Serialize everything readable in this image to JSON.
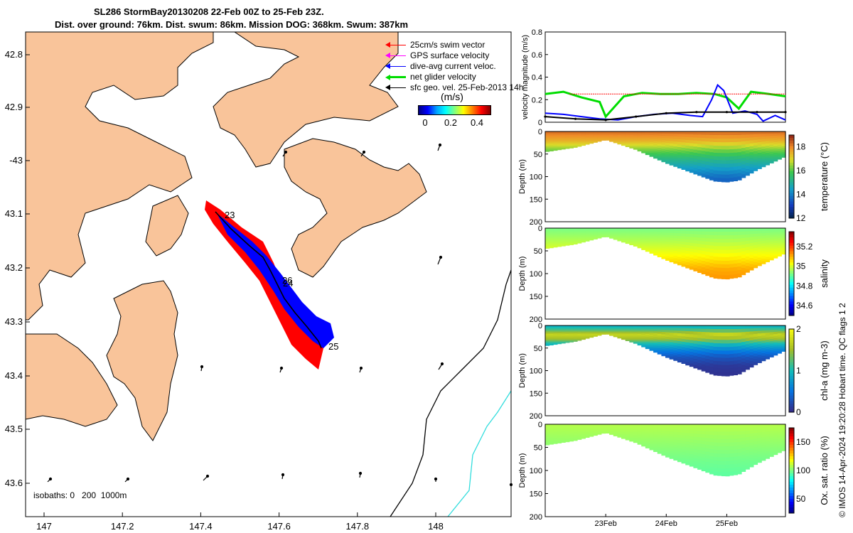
{
  "title_line1": "SL286 StormBay20130208 22-Feb 00Z to 25-Feb 23Z.",
  "title_line2": "Dist. over ground: 76km. Dist. swum: 86km. Mission DOG: 368km. Swum: 387km",
  "colors": {
    "land": "#F9C49A",
    "swim_vector": "#FF0000",
    "gps_velocity": "#FF00FF",
    "dive_avg": "#0000FF",
    "net_glider": "#00DD00",
    "sfc_geo": "#000000",
    "isobath_200": "#000000",
    "isobath_1000": "#33DDDD"
  },
  "map": {
    "lon_ticks": [
      "147",
      "147.2",
      "147.4",
      "147.6",
      "147.8",
      "148"
    ],
    "lat_ticks": [
      "42.8",
      "42.9",
      "-43",
      "43.1",
      "43.2",
      "43.3",
      "43.4",
      "43.5",
      "43.6"
    ],
    "legend": [
      {
        "label": "25cm/s swim vector",
        "icon": "red-arrow"
      },
      {
        "label": "GPS surface velocity",
        "icon": "magenta-arrow"
      },
      {
        "label": "dive-avg current veloc.",
        "icon": "blue-arrow"
      },
      {
        "label": "net glider velocity",
        "icon": "green-arrow"
      },
      {
        "label": "sfc geo. vel. 25-Feb-2013 14h",
        "icon": "black-arrow"
      }
    ],
    "colorbar_unit": "(m/s)",
    "colorbar_ticks": [
      "0",
      "0.2",
      "0.4"
    ],
    "day_labels": [
      "23",
      "26",
      "24",
      "25"
    ],
    "isobath_text": "isobaths: 0   200  1000m"
  },
  "chart_data": [
    {
      "type": "line",
      "ylabel": "velocity magnitude (m/s)",
      "ylim": [
        0,
        0.8
      ],
      "yticks": [
        "0",
        "0.2",
        "0.4",
        "0.6",
        "0.8"
      ],
      "xlim": [
        22.0,
        25.97
      ],
      "series": [
        {
          "color": "#00DD00",
          "x": [
            22.0,
            22.3,
            22.6,
            22.9,
            23.0,
            23.3,
            23.6,
            23.9,
            24.2,
            24.5,
            24.8,
            25.0,
            25.2,
            25.4,
            25.7,
            25.97
          ],
          "values": [
            0.25,
            0.27,
            0.22,
            0.18,
            0.05,
            0.23,
            0.26,
            0.25,
            0.25,
            0.26,
            0.25,
            0.22,
            0.12,
            0.27,
            0.25,
            0.23
          ]
        },
        {
          "color": "#0000FF",
          "x": [
            22.0,
            22.3,
            22.6,
            22.9,
            23.2,
            23.5,
            23.8,
            24.1,
            24.4,
            24.6,
            24.75,
            24.85,
            24.95,
            25.1,
            25.3,
            25.5,
            25.6,
            25.8,
            25.97
          ],
          "values": [
            0.08,
            0.07,
            0.05,
            0.03,
            0.02,
            0.05,
            0.07,
            0.08,
            0.06,
            0.05,
            0.2,
            0.33,
            0.28,
            0.08,
            0.1,
            0.07,
            0.01,
            0.06,
            0.02
          ]
        },
        {
          "color": "#000000",
          "x": [
            22.0,
            22.5,
            23.0,
            23.5,
            24.0,
            24.5,
            25.0,
            25.5,
            25.97
          ],
          "values": [
            0.05,
            0.03,
            0.02,
            0.05,
            0.08,
            0.09,
            0.09,
            0.09,
            0.09
          ]
        },
        {
          "color": "#FF0000",
          "x": [
            22.4,
            23.6,
            24.5,
            25.2,
            25.97
          ],
          "values": [
            0.25,
            0.25,
            0.25,
            0.25,
            0.25
          ]
        }
      ]
    },
    {
      "type": "heatmap",
      "ylabel": "Depth (m)",
      "clabel": "temperature (°C)",
      "ylim": [
        0,
        200
      ],
      "yticks": [
        "0",
        "50",
        "100",
        "150",
        "200"
      ],
      "clim": [
        12,
        19
      ],
      "cticks": [
        "12",
        "14",
        "16",
        "18"
      ],
      "xlim": [
        22.0,
        25.97
      ],
      "bottom_depth": {
        "x": [
          22.0,
          22.5,
          23.0,
          23.5,
          24.0,
          24.5,
          24.8,
          25.0,
          25.2,
          25.5,
          25.97
        ],
        "depth": [
          45,
          35,
          18,
          40,
          70,
          95,
          110,
          112,
          108,
          85,
          55
        ]
      },
      "profile": {
        "depth": [
          0,
          20,
          40,
          60,
          80,
          100,
          112
        ],
        "value": [
          18.3,
          17.5,
          16.3,
          15.3,
          14.5,
          13.8,
          13.5
        ]
      }
    },
    {
      "type": "heatmap",
      "ylabel": "Depth (m)",
      "clabel": "salinity",
      "ylim": [
        0,
        200
      ],
      "yticks": [
        "0",
        "50",
        "100",
        "150",
        "200"
      ],
      "clim": [
        34.5,
        35.35
      ],
      "cticks": [
        "34.6",
        "34.8",
        "35",
        "35.2"
      ],
      "xlim": [
        22.0,
        25.97
      ],
      "bottom_depth": {
        "x": [
          22.0,
          22.5,
          23.0,
          23.5,
          24.0,
          24.5,
          24.8,
          25.0,
          25.2,
          25.5,
          25.97
        ],
        "depth": [
          45,
          35,
          18,
          40,
          70,
          95,
          110,
          112,
          108,
          85,
          55
        ]
      },
      "profile": {
        "depth": [
          0,
          30,
          60,
          90,
          112
        ],
        "value": [
          34.92,
          34.97,
          35.03,
          35.1,
          35.12
        ]
      }
    },
    {
      "type": "heatmap",
      "ylabel": "Depth (m)",
      "clabel": "chl-a (mg m-3)",
      "ylim": [
        0,
        200
      ],
      "yticks": [
        "0",
        "50",
        "100",
        "150",
        "200"
      ],
      "clim": [
        0,
        2
      ],
      "cticks": [
        "0",
        "1",
        "2"
      ],
      "xlim": [
        22.0,
        25.97
      ],
      "bottom_depth": {
        "x": [
          22.0,
          22.5,
          23.0,
          23.5,
          24.0,
          24.5,
          24.8,
          25.0,
          25.2,
          25.5,
          25.97
        ],
        "depth": [
          45,
          35,
          18,
          40,
          70,
          95,
          110,
          112,
          108,
          85,
          55
        ]
      },
      "profile": {
        "depth": [
          0,
          10,
          20,
          30,
          40,
          55,
          70,
          90,
          112
        ],
        "value": [
          0.85,
          1.2,
          1.7,
          1.5,
          1.0,
          0.6,
          0.3,
          0.1,
          0.05
        ]
      }
    },
    {
      "type": "heatmap",
      "ylabel": "Depth (m)",
      "clabel": "Ox. sat. ratio (%)",
      "ylim": [
        0,
        200
      ],
      "yticks": [
        "0",
        "50",
        "100",
        "150",
        "200"
      ],
      "clim": [
        25,
        175
      ],
      "cticks": [
        "50",
        "100",
        "150"
      ],
      "xlim": [
        22.0,
        25.97
      ],
      "xticks": [
        {
          "x": 23,
          "label": "23Feb"
        },
        {
          "x": 24,
          "label": "24Feb"
        },
        {
          "x": 25,
          "label": "25Feb"
        }
      ],
      "bottom_depth": {
        "x": [
          22.0,
          22.5,
          23.0,
          23.5,
          24.0,
          24.5,
          24.8,
          25.0,
          25.2,
          25.5,
          25.97
        ],
        "depth": [
          45,
          35,
          18,
          40,
          70,
          95,
          110,
          112,
          108,
          85,
          55
        ]
      },
      "profile": {
        "depth": [
          0,
          40,
          80,
          112
        ],
        "value": [
          108,
          103,
          98,
          95
        ]
      }
    }
  ],
  "credit": "© IMOS 14-Apr-2024 19:20:28 Hobart time. QC flags 1  2"
}
